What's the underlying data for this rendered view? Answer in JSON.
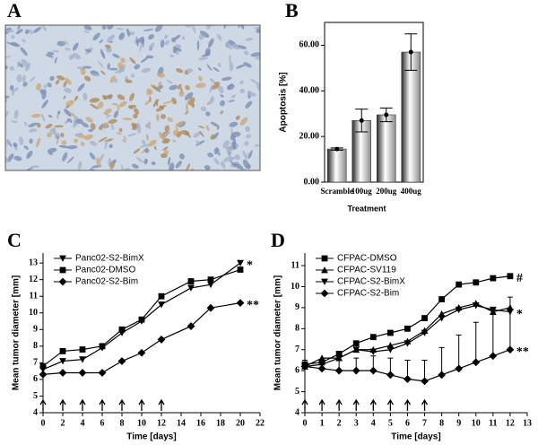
{
  "panel_a_label": "A",
  "chart_data": [
    {
      "type": "bar",
      "panel_label": "B",
      "ylabel": "Apoptosis [%]",
      "xlabel": "Treatment",
      "categories": [
        "Scramble",
        "100ug",
        "200ug",
        "400ug"
      ],
      "values": [
        14.5,
        27,
        29.5,
        57
      ],
      "errors": [
        0.5,
        5,
        3,
        8
      ],
      "color": "#8c8c8c",
      "ylim": [
        0,
        70
      ],
      "yticks": [
        {
          "value": 0,
          "label": "0.00"
        },
        {
          "value": 20,
          "label": "20.00"
        },
        {
          "value": 40,
          "label": "40.00"
        },
        {
          "value": 60,
          "label": "60.00"
        }
      ]
    },
    {
      "type": "line",
      "panel_label": "C",
      "ylabel": "Mean tumor diameter [mm]",
      "xlabel": "Time [days]",
      "x": [
        0,
        2,
        4,
        6,
        8,
        10,
        12,
        15,
        17,
        20
      ],
      "series": [
        {
          "name": "Panc02-S2-BimX",
          "color": "#000000",
          "marker": "triangle-down",
          "annotation": "*",
          "values": [
            6.6,
            7.1,
            7.2,
            7.9,
            8.8,
            9.5,
            10.5,
            11.5,
            11.7,
            13.0
          ]
        },
        {
          "name": "Panc02-DMSO",
          "color": "#000000",
          "marker": "square",
          "values": [
            6.8,
            7.7,
            7.8,
            8.0,
            9.0,
            9.6,
            11.0,
            11.9,
            12.0,
            12.6
          ]
        },
        {
          "name": "Panc02-S2-Bim",
          "color": "#000000",
          "marker": "diamond",
          "annotation": "**",
          "values": [
            6.3,
            6.4,
            6.4,
            6.4,
            7.1,
            7.6,
            8.4,
            9.2,
            10.3,
            10.6
          ]
        }
      ],
      "treatment_days": [
        0,
        2,
        4,
        6,
        8,
        10,
        12
      ],
      "xlim": [
        0,
        22
      ],
      "xticks": [
        0,
        2,
        4,
        6,
        8,
        10,
        12,
        14,
        16,
        18,
        20,
        22
      ],
      "ylim": [
        4,
        13.6
      ],
      "yticks": [
        4,
        5,
        6,
        7,
        8,
        9,
        10,
        11,
        12,
        13
      ]
    },
    {
      "type": "line",
      "panel_label": "D",
      "ylabel": "Mean tumor diameter [mm]",
      "xlabel": "Time [days]",
      "x": [
        0,
        1,
        2,
        3,
        4,
        5,
        6,
        7,
        8,
        9,
        10,
        11,
        12
      ],
      "series": [
        {
          "name": "CFPAC-DMSO",
          "color": "#000000",
          "marker": "square",
          "annotation": "#",
          "values": [
            6.3,
            6.4,
            6.8,
            7.3,
            7.6,
            7.8,
            8.0,
            8.5,
            9.4,
            10.1,
            10.2,
            10.4,
            10.5
          ]
        },
        {
          "name": "CFPAC-SV119",
          "color": "#000000",
          "marker": "triangle-up",
          "values": [
            6.2,
            6.6,
            6.6,
            7.0,
            7.0,
            7.2,
            7.4,
            7.9,
            8.7,
            9.0,
            9.2,
            8.8,
            9.0
          ]
        },
        {
          "name": "CFPAC-S2-BimX",
          "color": "#000000",
          "marker": "triangle-down",
          "annotation": "*",
          "values": [
            6.2,
            6.3,
            6.6,
            7.0,
            6.9,
            7.0,
            7.3,
            7.8,
            8.5,
            8.9,
            9.1,
            8.9,
            8.8
          ]
        },
        {
          "name": "CFPAC-S2-Bim",
          "color": "#000000",
          "marker": "diamond",
          "annotation": "**",
          "values": [
            6.2,
            6.1,
            6.0,
            6.0,
            6.0,
            5.8,
            5.6,
            5.5,
            5.8,
            6.1,
            6.4,
            6.7,
            7.0
          ],
          "errors": [
            0.3,
            0.4,
            0.5,
            0.6,
            0.7,
            0.8,
            0.9,
            1.0,
            1.3,
            1.6,
            1.9,
            2.2,
            2.5
          ]
        }
      ],
      "treatment_days": [
        0,
        1,
        2,
        3,
        4,
        5,
        6,
        7
      ],
      "xlim": [
        0,
        13
      ],
      "xticks": [
        0,
        1,
        2,
        3,
        4,
        5,
        6,
        7,
        8,
        9,
        10,
        11,
        12,
        13
      ],
      "ylim": [
        4,
        11.6
      ],
      "yticks": [
        4,
        5,
        6,
        7,
        8,
        9,
        10,
        11
      ]
    }
  ]
}
